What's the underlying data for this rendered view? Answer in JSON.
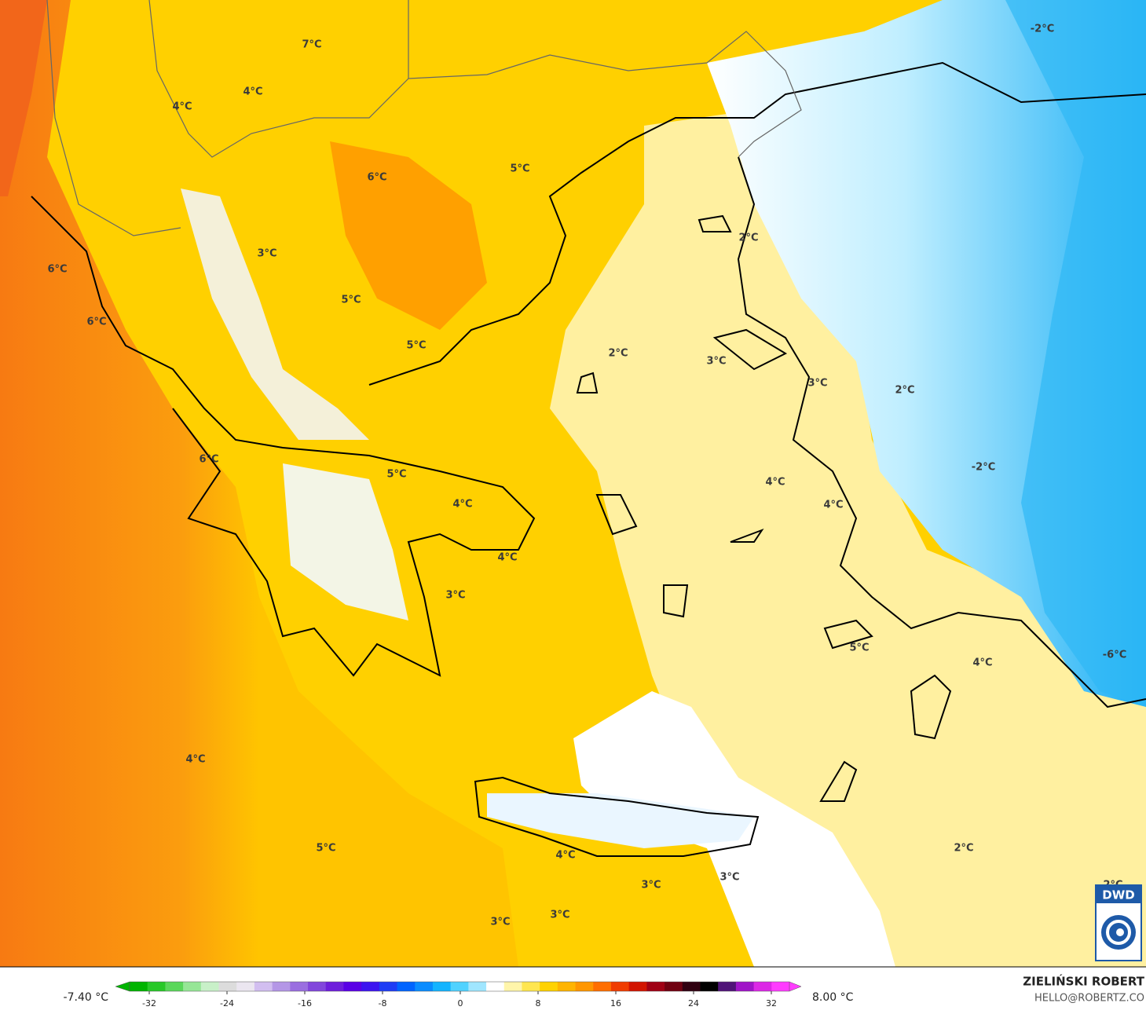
{
  "map": {
    "labels": [
      "-2°C",
      "7°C",
      "4°C",
      "4°C",
      "5°C",
      "6°C",
      "2°C",
      "3°C",
      "6°C",
      "5°C",
      "6°C",
      "5°C",
      "2°C",
      "3°C",
      "3°C",
      "2°C",
      "6°C",
      "5°C",
      "-2°C",
      "4°C",
      "4°C",
      "4°C",
      "4°C",
      "3°C",
      "5°C",
      "4°C",
      "-6°C",
      "4°C",
      "5°C",
      "2°C",
      "4°C",
      "3°C",
      "3°C",
      "2°C",
      "3°C",
      "3°C"
    ]
  },
  "colorbar": {
    "min_label": "-7.40 °C",
    "max_label": "8.00 °C",
    "range": [
      -32,
      32
    ],
    "ticks": [
      -32,
      -24,
      -16,
      -8,
      0,
      8,
      16,
      24,
      32
    ],
    "colors": [
      "#00b400",
      "#28c828",
      "#5ad75a",
      "#96e696",
      "#c8f0c8",
      "#dcdcdc",
      "#ebe6f0",
      "#d2bef0",
      "#b496e6",
      "#9a6ee0",
      "#8246dc",
      "#6e1edc",
      "#5a00e6",
      "#3c14f0",
      "#1e3cf5",
      "#0064ff",
      "#0a8cff",
      "#14b4ff",
      "#50d2ff",
      "#a0e6ff",
      "#ffffff",
      "#fff5aa",
      "#ffe650",
      "#ffd200",
      "#ffb400",
      "#ff9600",
      "#ff6e00",
      "#f03c00",
      "#d21400",
      "#a00014",
      "#700010",
      "#300010",
      "#000000",
      "#501478",
      "#a014c8",
      "#dc28e6",
      "#ff3cff"
    ]
  },
  "credit": {
    "author": "ZIELIŃSKI ROBERT",
    "email": "HELLO@ROBERTZ.CO"
  },
  "logo": "DWD"
}
